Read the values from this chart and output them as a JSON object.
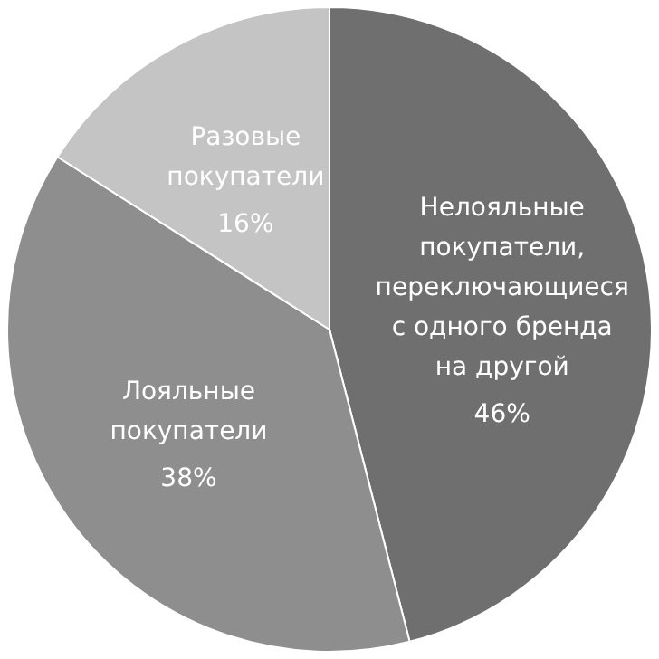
{
  "chart_data": {
    "type": "pie",
    "categories": [
      "Нелояльные покупатели, переключающиеся с одного бренда на другой",
      "Лояльные покупатели",
      "Разовые покупатели"
    ],
    "values": [
      46,
      38,
      16
    ],
    "value_labels": [
      "46%",
      "38%",
      "16%"
    ],
    "colors": [
      "#6f6f6f",
      "#8e8e8e",
      "#c4c4c4"
    ]
  }
}
